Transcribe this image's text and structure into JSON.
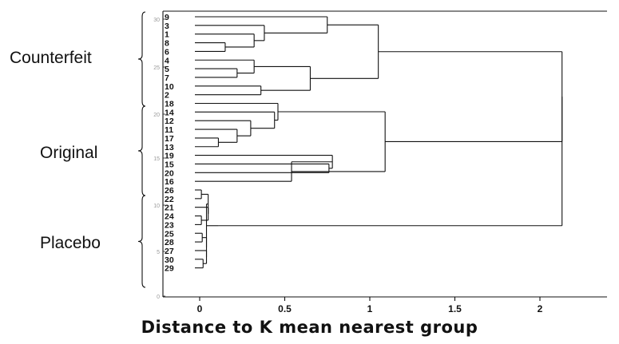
{
  "chart_data": {
    "type": "dendrogram",
    "title": "",
    "xlabel": "Distance to K mean nearest group",
    "xlim": [
      -0.18,
      2.42
    ],
    "xticks": [
      {
        "value": 0,
        "label": "0"
      },
      {
        "value": 0.5,
        "label": "0.5"
      },
      {
        "value": 1,
        "label": "1"
      },
      {
        "value": 1.5,
        "label": "1.5"
      },
      {
        "value": 2,
        "label": "2"
      }
    ],
    "left_axis_ticks": [
      "30",
      "25",
      "20",
      "15",
      "10",
      "5",
      "0"
    ],
    "groups": [
      {
        "label": "Counterfeit",
        "leaves": [
          "9",
          "3",
          "1",
          "8",
          "6",
          "4",
          "5",
          "7",
          "10",
          "2"
        ]
      },
      {
        "label": "Original",
        "leaves": [
          "18",
          "14",
          "12",
          "11",
          "17",
          "13",
          "19",
          "15",
          "20",
          "16"
        ]
      },
      {
        "label": "Placebo",
        "leaves": [
          "26",
          "22",
          "21",
          "24",
          "23",
          "25",
          "28",
          "27",
          "30",
          "29"
        ]
      }
    ],
    "leaves": [
      "9",
      "3",
      "1",
      "8",
      "6",
      "4",
      "5",
      "7",
      "10",
      "2",
      "18",
      "14",
      "12",
      "11",
      "17",
      "13",
      "19",
      "15",
      "20",
      "16",
      "26",
      "22",
      "21",
      "24",
      "23",
      "25",
      "28",
      "27",
      "30",
      "29"
    ],
    "merges": [
      {
        "a": "8",
        "b": "6",
        "height": 0.15
      },
      {
        "a": "1",
        "b": "8+6",
        "height": 0.32
      },
      {
        "a": "3",
        "b": "1+8+6",
        "height": 0.38
      },
      {
        "a": "9",
        "b": "3+1+8+6",
        "height": 0.75
      },
      {
        "a": "5",
        "b": "7",
        "height": 0.22
      },
      {
        "a": "4",
        "b": "5+7",
        "height": 0.32
      },
      {
        "a": "10",
        "b": "2",
        "height": 0.36
      },
      {
        "a": "4+5+7",
        "b": "10+2",
        "height": 0.65
      },
      {
        "a": "9+3+1+8+6",
        "b": "4+5+7+10+2",
        "height": 1.05
      },
      {
        "a": "17",
        "b": "13",
        "height": 0.11
      },
      {
        "a": "11",
        "b": "17+13",
        "height": 0.22
      },
      {
        "a": "12",
        "b": "11+17+13",
        "height": 0.3
      },
      {
        "a": "14",
        "b": "12+11+17+13",
        "height": 0.44
      },
      {
        "a": "18",
        "b": "14+12+11+17+13",
        "height": 0.46
      },
      {
        "a": "15",
        "b": "20",
        "height": 0.76
      },
      {
        "a": "19",
        "b": "15+20",
        "height": 0.78
      },
      {
        "a": "19+15+20",
        "b": "16",
        "height": 0.54
      },
      {
        "a": "original-a",
        "b": "original-b",
        "height": 1.09
      },
      {
        "a": "counterfeit",
        "b": "original",
        "height": 2.13
      },
      {
        "a": "placebo",
        "b": "all-others",
        "height": 2.13
      }
    ]
  },
  "group_labels": {
    "counterfeit": "Counterfeit",
    "original": "Original",
    "placebo": "Placebo"
  },
  "colors": {
    "line": "#111111",
    "axis_tick_faint": "#9a9a9a"
  }
}
